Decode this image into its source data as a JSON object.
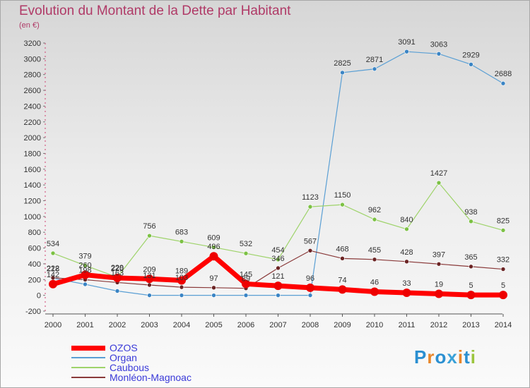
{
  "header": {
    "title": "Evolution du Montant de la Dette par Habitant",
    "unit": "(en €)"
  },
  "logo": {
    "letters": [
      "P",
      "r",
      "o",
      "x",
      "i",
      "t",
      "i"
    ],
    "colors": [
      "#2b8fd1",
      "#e8862a",
      "#2b8fd1",
      "#3aa1d8",
      "#e8862a",
      "#2b8fd1",
      "#9bc53d"
    ]
  },
  "chart_data": {
    "type": "line",
    "title": "Evolution du Montant de la Dette par Habitant",
    "ylabel": "(en €)",
    "xlabel": "",
    "ylim": [
      -200,
      3200
    ],
    "ytick_step": 200,
    "grid": false,
    "legend_position": "bottom-left",
    "categories": [
      "2000",
      "2001",
      "2002",
      "2003",
      "2004",
      "2005",
      "2006",
      "2007",
      "2008",
      "2009",
      "2010",
      "2011",
      "2012",
      "2013",
      "2014"
    ],
    "series": [
      {
        "name": "Organ",
        "color": "#5a9fd4",
        "marker_color": "#3a84c4",
        "line_width": 1.2,
        "marker_radius": 3,
        "values": [
          218,
          140,
          55,
          0,
          0,
          0,
          0,
          0,
          0,
          2825,
          2871,
          3091,
          3063,
          2929,
          2688
        ],
        "labels": [
          "218",
          "",
          "",
          "",
          "",
          "",
          "",
          "",
          "",
          "2825",
          "2871",
          "3091",
          "3063",
          "2929",
          "2688"
        ]
      },
      {
        "name": "Caubous",
        "color": "#9ed36a",
        "marker_color": "#7cc144",
        "line_width": 1.2,
        "marker_radius": 3,
        "values": [
          534,
          379,
          229,
          756,
          683,
          609,
          532,
          454,
          1123,
          1150,
          962,
          840,
          1427,
          938,
          825
        ],
        "labels": [
          "534",
          "379",
          "229",
          "756",
          "683",
          "609",
          "532",
          "454",
          "1123",
          "1150",
          "962",
          "840",
          "1427",
          "938",
          "825"
        ]
      },
      {
        "name": "Monléon-Magnoac",
        "color": "#8a3a3a",
        "marker_color": "#6b2424",
        "line_width": 1.2,
        "marker_radius": 3,
        "values": [
          222,
          198,
          163,
          131,
          103,
          97,
          89,
          346,
          567,
          468,
          455,
          428,
          397,
          365,
          332
        ],
        "labels": [
          "222",
          "198",
          "163",
          "131",
          "103",
          "97",
          "89",
          "346",
          "567",
          "468",
          "455",
          "428",
          "397",
          "365",
          "332"
        ]
      },
      {
        "name": "OZOS",
        "color": "#ff0000",
        "marker_color": "#ee0000",
        "line_width": 7,
        "marker_radius": 6,
        "values": [
          142,
          260,
          220,
          209,
          189,
          496,
          145,
          121,
          96,
          74,
          46,
          33,
          19,
          5,
          5
        ],
        "labels": [
          "142",
          "260",
          "220",
          "209",
          "189",
          "496",
          "145",
          "121",
          "96",
          "74",
          "46",
          "33",
          "19",
          "5",
          "5"
        ]
      }
    ],
    "legend": [
      {
        "name": "OZOS",
        "color": "#ff0000",
        "thickness": 7
      },
      {
        "name": "Organ",
        "color": "#5a9fd4",
        "thickness": 2
      },
      {
        "name": "Caubous",
        "color": "#9ed36a",
        "thickness": 2
      },
      {
        "name": "Monléon-Magnoac",
        "color": "#8a3a3a",
        "thickness": 2
      }
    ]
  }
}
